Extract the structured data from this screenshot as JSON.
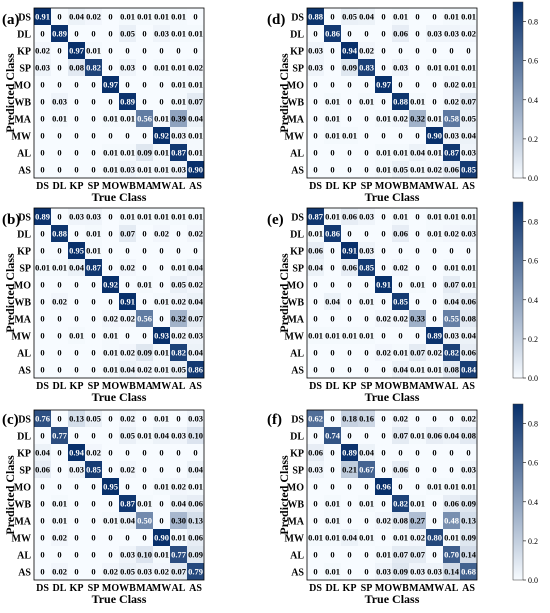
{
  "chart_data": [
    {
      "type": "heatmap",
      "panel_label": "(a)",
      "xlabel": "True Class",
      "ylabel": "Predicted Class",
      "categories": [
        "DS",
        "DL",
        "KP",
        "SP",
        "MO",
        "WB",
        "MA",
        "MW",
        "AL",
        "AS"
      ],
      "colorbar": false,
      "values": [
        [
          "0.91",
          "0",
          "0.04",
          "0.02",
          "0",
          "0.01",
          "0.01",
          "0.01",
          "0.01",
          "0"
        ],
        [
          "0",
          "0.89",
          "0",
          "0",
          "0",
          "0.05",
          "0",
          "0.03",
          "0.01",
          "0.01"
        ],
        [
          "0.02",
          "0",
          "0.97",
          "0.01",
          "0",
          "0",
          "0",
          "0",
          "0",
          "0"
        ],
        [
          "0.03",
          "0",
          "0.08",
          "0.82",
          "0",
          "0.03",
          "0",
          "0.01",
          "0.01",
          "0.02"
        ],
        [
          "0",
          "0",
          "0",
          "0",
          "0.97",
          "0",
          "0",
          "0",
          "0.01",
          "0.01"
        ],
        [
          "0",
          "0.03",
          "0",
          "0",
          "0",
          "0.89",
          "0",
          "0",
          "0.01",
          "0.07"
        ],
        [
          "0",
          "0.01",
          "0",
          "0",
          "0.01",
          "0.01",
          "0.56",
          "0.01",
          "0.39",
          "0.04"
        ],
        [
          "0",
          "0",
          "0",
          "0",
          "0",
          "0",
          "0",
          "0.92",
          "0.03",
          "0.01"
        ],
        [
          "0",
          "0",
          "0",
          "0",
          "0.01",
          "0.01",
          "0.09",
          "0.01",
          "0.87",
          "0.01"
        ],
        [
          "0",
          "0",
          "0",
          "0",
          "0.01",
          "0.03",
          "0.01",
          "0.01",
          "0.03",
          "0.90"
        ]
      ]
    },
    {
      "type": "heatmap",
      "panel_label": "(b)",
      "xlabel": "True Class",
      "ylabel": "Predicted Class",
      "categories": [
        "DS",
        "DL",
        "KP",
        "SP",
        "MO",
        "WB",
        "MA",
        "MW",
        "AL",
        "AS"
      ],
      "colorbar": false,
      "values": [
        [
          "0.89",
          "0",
          "0.03",
          "0.03",
          "0",
          "0.01",
          "0.01",
          "0.01",
          "0.01",
          "0.01"
        ],
        [
          "0",
          "0.88",
          "0",
          "0.01",
          "0",
          "0.07",
          "0",
          "0.02",
          "0",
          "0.02"
        ],
        [
          "0",
          "0",
          "0.95",
          "0.01",
          "0",
          "0",
          "0",
          "0",
          "0",
          "0"
        ],
        [
          "0.01",
          "0.01",
          "0.04",
          "0.87",
          "0",
          "0.02",
          "0",
          "0",
          "0.01",
          "0.04"
        ],
        [
          "0",
          "0",
          "0",
          "0",
          "0.92",
          "0",
          "0.01",
          "0",
          "0.05",
          "0.02"
        ],
        [
          "0",
          "0.02",
          "0",
          "0",
          "0",
          "0.91",
          "0",
          "0.01",
          "0.02",
          "0.04"
        ],
        [
          "0",
          "0",
          "0",
          "0",
          "0.02",
          "0.02",
          "0.56",
          "0",
          "0.32",
          "0.07"
        ],
        [
          "0",
          "0",
          "0.01",
          "0",
          "0.01",
          "0",
          "0",
          "0.93",
          "0.02",
          "0.03"
        ],
        [
          "0",
          "0",
          "0",
          "0",
          "0.01",
          "0.02",
          "0.09",
          "0.01",
          "0.82",
          "0.04"
        ],
        [
          "0",
          "0",
          "0",
          "0",
          "0.01",
          "0.04",
          "0.02",
          "0.01",
          "0.05",
          "0.86"
        ]
      ]
    },
    {
      "type": "heatmap",
      "panel_label": "(c)",
      "xlabel": "True Class",
      "ylabel": "Predicted Class",
      "categories": [
        "DS",
        "DL",
        "KP",
        "SP",
        "MO",
        "WB",
        "MA",
        "MW",
        "AL",
        "AS"
      ],
      "colorbar": false,
      "values": [
        [
          "0.76",
          "0",
          "0.13",
          "0.05",
          "0",
          "0.02",
          "0",
          "0.01",
          "0",
          "0.03"
        ],
        [
          "0",
          "0.77",
          "0",
          "0",
          "0",
          "0.05",
          "0.01",
          "0.04",
          "0.03",
          "0.10"
        ],
        [
          "0.04",
          "0",
          "0.94",
          "0.02",
          "0",
          "0",
          "0",
          "0",
          "0",
          "0"
        ],
        [
          "0.06",
          "0",
          "0.03",
          "0.85",
          "0",
          "0.02",
          "0",
          "0",
          "0",
          "0.04"
        ],
        [
          "0",
          "0",
          "0",
          "0",
          "0.95",
          "0",
          "0",
          "0.01",
          "0.02",
          "0.01"
        ],
        [
          "0",
          "0.01",
          "0",
          "0",
          "0",
          "0.87",
          "0.01",
          "0",
          "0.04",
          "0.06"
        ],
        [
          "0",
          "0.01",
          "0",
          "0",
          "0.01",
          "0.04",
          "0.50",
          "0",
          "0.30",
          "0.13"
        ],
        [
          "0",
          "0.02",
          "0",
          "0",
          "0",
          "0",
          "0",
          "0.90",
          "0.01",
          "0.06"
        ],
        [
          "0",
          "0",
          "0",
          "0",
          "0",
          "0.03",
          "0.10",
          "0.01",
          "0.77",
          "0.09"
        ],
        [
          "0",
          "0.02",
          "0",
          "0",
          "0.02",
          "0.05",
          "0.03",
          "0.02",
          "0.07",
          "0.79"
        ]
      ]
    },
    {
      "type": "heatmap",
      "panel_label": "(d)",
      "xlabel": "True Class",
      "ylabel": "Predicted Class",
      "categories": [
        "DS",
        "DL",
        "KP",
        "SP",
        "MO",
        "WB",
        "MA",
        "MW",
        "AL",
        "AS"
      ],
      "colorbar": true,
      "colorbar_ticks": [
        "0.0",
        "0.2",
        "0.4",
        "0.6",
        "0.8"
      ],
      "values": [
        [
          "0.88",
          "0",
          "0.05",
          "0.04",
          "0",
          "0.01",
          "0",
          "0",
          "0.01",
          "0.01"
        ],
        [
          "0",
          "0.86",
          "0",
          "0",
          "0",
          "0.06",
          "0",
          "0.03",
          "0.03",
          "0.02"
        ],
        [
          "0.03",
          "0",
          "0.94",
          "0.02",
          "0",
          "0",
          "0",
          "0",
          "0",
          "0"
        ],
        [
          "0.03",
          "0",
          "0.09",
          "0.83",
          "0",
          "0.03",
          "0",
          "0.01",
          "0.01",
          "0.01"
        ],
        [
          "0",
          "0",
          "0",
          "0",
          "0.97",
          "0",
          "0",
          "0",
          "0.02",
          "0.01"
        ],
        [
          "0",
          "0.01",
          "0",
          "0.01",
          "0",
          "0.88",
          "0.01",
          "0",
          "0.02",
          "0.07"
        ],
        [
          "0",
          "0.01",
          "0",
          "0",
          "0.01",
          "0.02",
          "0.32",
          "0.01",
          "0.58",
          "0.05"
        ],
        [
          "0",
          "0.01",
          "0.01",
          "0",
          "0",
          "0",
          "0",
          "0.90",
          "0.03",
          "0.04"
        ],
        [
          "0",
          "0",
          "0",
          "0",
          "0.01",
          "0.01",
          "0.04",
          "0.01",
          "0.87",
          "0.03"
        ],
        [
          "0",
          "0",
          "0",
          "0",
          "0.01",
          "0.05",
          "0.01",
          "0.02",
          "0.06",
          "0.85"
        ]
      ]
    },
    {
      "type": "heatmap",
      "panel_label": "(e)",
      "xlabel": "True Class",
      "ylabel": "Predicted Class",
      "categories": [
        "DS",
        "DL",
        "KP",
        "SP",
        "MO",
        "WB",
        "MA",
        "MW",
        "AL",
        "AS"
      ],
      "colorbar": true,
      "colorbar_ticks": [
        "0.0",
        "0.2",
        "0.4",
        "0.6",
        "0.8"
      ],
      "values": [
        [
          "0.87",
          "0.01",
          "0.06",
          "0.03",
          "0",
          "0.01",
          "0",
          "0.01",
          "0.01",
          "0.01"
        ],
        [
          "0.01",
          "0.86",
          "0",
          "0",
          "0",
          "0.06",
          "0",
          "0.01",
          "0.02",
          "0.03"
        ],
        [
          "0.06",
          "0",
          "0.91",
          "0.03",
          "0",
          "0",
          "0",
          "0",
          "0",
          "0"
        ],
        [
          "0.04",
          "0",
          "0.06",
          "0.85",
          "0",
          "0.02",
          "0",
          "0",
          "0.01",
          "0.01"
        ],
        [
          "0",
          "0",
          "0",
          "0",
          "0.91",
          "0",
          "0.01",
          "0",
          "0.07",
          "0.01"
        ],
        [
          "0",
          "0.04",
          "0",
          "0.01",
          "0",
          "0.85",
          "0",
          "0",
          "0.04",
          "0.06"
        ],
        [
          "0",
          "0",
          "0",
          "0",
          "0.02",
          "0.02",
          "0.33",
          "0",
          "0.55",
          "0.08"
        ],
        [
          "0.01",
          "0.01",
          "0.01",
          "0.01",
          "0",
          "0",
          "0",
          "0.89",
          "0.03",
          "0.04"
        ],
        [
          "0",
          "0",
          "0",
          "0",
          "0.02",
          "0.01",
          "0.07",
          "0.02",
          "0.82",
          "0.06"
        ],
        [
          "0",
          "0",
          "0",
          "0",
          "0",
          "0.04",
          "0.01",
          "0.01",
          "0.08",
          "0.84"
        ]
      ]
    },
    {
      "type": "heatmap",
      "panel_label": "(f)",
      "xlabel": "True Class",
      "ylabel": "Predicted Class",
      "categories": [
        "DS",
        "DL",
        "KP",
        "SP",
        "MO",
        "WB",
        "MA",
        "MW",
        "AL",
        "AS"
      ],
      "colorbar": true,
      "colorbar_ticks": [
        "0.0",
        "0.2",
        "0.4",
        "0.6",
        "0.8"
      ],
      "values": [
        [
          "0.62",
          "0",
          "0.18",
          "0.16",
          "0",
          "0.02",
          "0",
          "0",
          "0",
          "0.02"
        ],
        [
          "0",
          "0.74",
          "0",
          "0",
          "0",
          "0.07",
          "0.01",
          "0.06",
          "0.04",
          "0.08"
        ],
        [
          "0.06",
          "0",
          "0.89",
          "0.04",
          "0",
          "0",
          "0",
          "0",
          "0",
          "0"
        ],
        [
          "0.03",
          "0",
          "0.21",
          "0.67",
          "0",
          "0.06",
          "0",
          "0",
          "0",
          "0.03"
        ],
        [
          "0",
          "0",
          "0",
          "0",
          "0.96",
          "0",
          "0",
          "0.01",
          "0.01",
          "0.01"
        ],
        [
          "0",
          "0.01",
          "0",
          "0.01",
          "0",
          "0.82",
          "0.01",
          "0",
          "0.06",
          "0.09"
        ],
        [
          "0",
          "0.01",
          "0",
          "0",
          "0.02",
          "0.08",
          "0.27",
          "0",
          "0.48",
          "0.13"
        ],
        [
          "0.01",
          "0.01",
          "0.04",
          "0.01",
          "0",
          "0.01",
          "0.02",
          "0.80",
          "0.01",
          "0.09"
        ],
        [
          "0",
          "0",
          "0",
          "0",
          "0.01",
          "0.07",
          "0.07",
          "0",
          "0.70",
          "0.14"
        ],
        [
          "0",
          "0.01",
          "0",
          "0",
          "0.03",
          "0.09",
          "0.03",
          "0.03",
          "0.14",
          "0.68"
        ]
      ]
    }
  ]
}
